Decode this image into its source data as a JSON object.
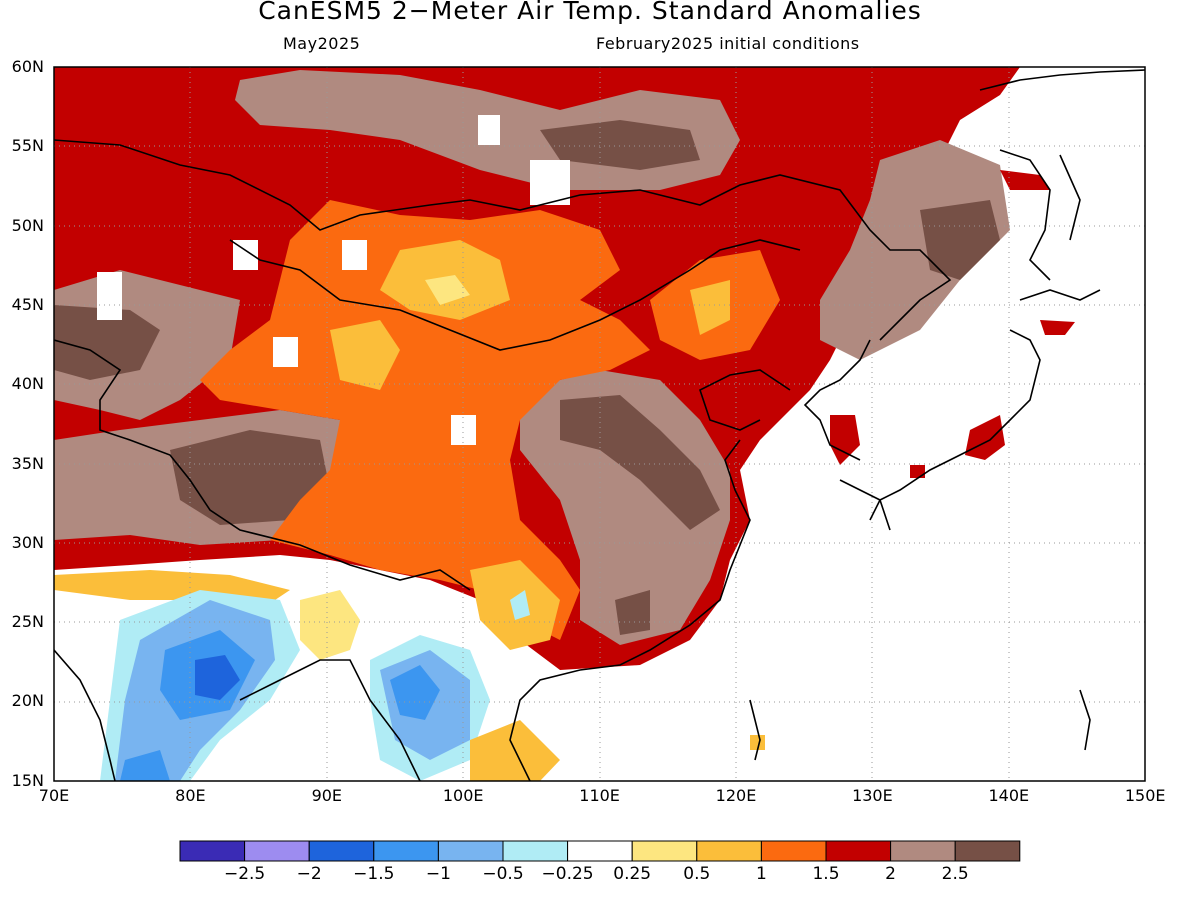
{
  "title": "CanESM5 2−Meter Air Temp. Standard Anomalies",
  "valid_month": "May2025",
  "initial_conditions": "February2025 initial conditions",
  "lat_labels": [
    "60N",
    "55N",
    "50N",
    "45N",
    "40N",
    "35N",
    "30N",
    "25N",
    "20N",
    "15N"
  ],
  "lon_labels": [
    "70E",
    "80E",
    "90E",
    "100E",
    "110E",
    "120E",
    "130E",
    "140E",
    "150E"
  ],
  "colorbar": {
    "labels": [
      "−2.5",
      "−2",
      "−1.5",
      "−1",
      "−0.5",
      "−0.25",
      "0.25",
      "0.5",
      "1",
      "1.5",
      "2",
      "2.5"
    ],
    "colors": [
      "#3a2bb5",
      "#9d8cf0",
      "#1e64dc",
      "#3c96f0",
      "#78b4f0",
      "#b0ecf5",
      "#ffffff",
      "#fde680",
      "#fbbe3a",
      "#fb6a10",
      "#c20000",
      "#b08a80",
      "#765046"
    ]
  },
  "map": {
    "region": "East Asia",
    "extent": {
      "lon": [
        70,
        150
      ],
      "lat": [
        15,
        60
      ]
    },
    "grid": "dotted",
    "anomaly_regions": [
      {
        "area": "Siberia / Mongolia / north China",
        "category": "1.5 to 2"
      },
      {
        "area": "Central Mongolia / northern China core",
        "category": "0.5 to 1.5"
      },
      {
        "area": "Central Asia / Tibet west",
        "category": "2 to 2.5+"
      },
      {
        "area": "Southeast China",
        "category": "2 to 2.5+"
      },
      {
        "area": "India / Bay of Bengal",
        "category": "-2 to -0.5"
      },
      {
        "area": "Japan / ocean east",
        "category": "-0.25 to 0.25"
      }
    ]
  }
}
